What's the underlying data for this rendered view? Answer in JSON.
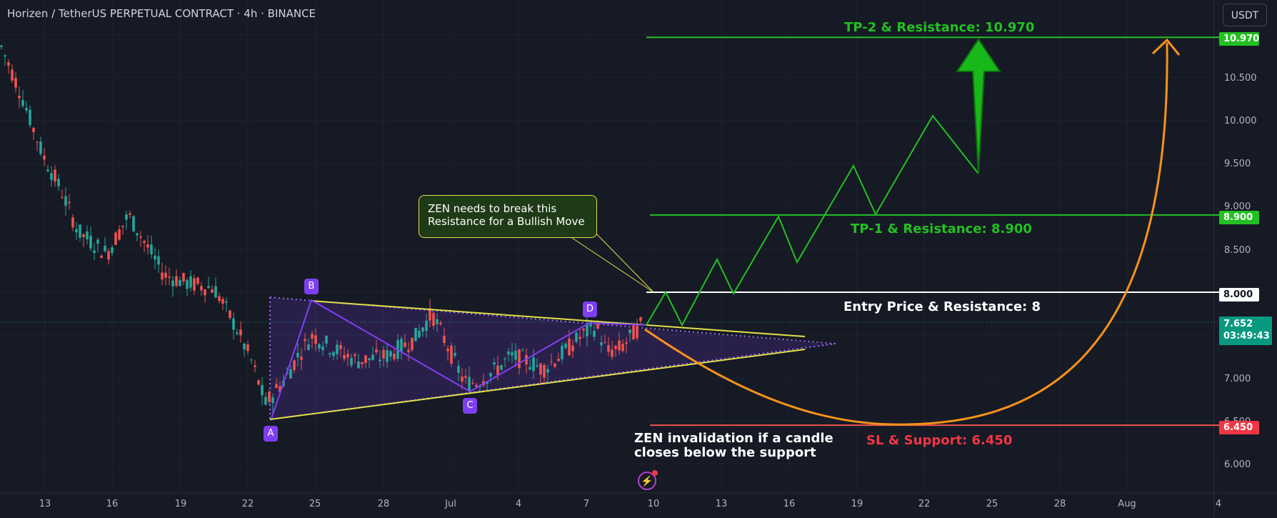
{
  "header": {
    "title": "Horizen / TetherUS PERPETUAL CONTRACT · 4h · BINANCE",
    "currency": "USDT"
  },
  "chart_data": {
    "type": "candlestick",
    "x_tick_labels": [
      "13",
      "16",
      "19",
      "22",
      "25",
      "28",
      "Jul",
      "4",
      "7",
      "10",
      "13",
      "16",
      "19",
      "22",
      "25",
      "28",
      "Aug",
      "4"
    ],
    "y_tick_labels": [
      "10.500",
      "10.000",
      "9.500",
      "9.000",
      "8.500",
      "8.000",
      "7.000",
      "6.500",
      "6.000"
    ],
    "ylim": [
      5.5,
      11.3
    ],
    "current_price": "7.652",
    "countdown": "03:49:43",
    "levels": [
      {
        "name": "TP-2",
        "price": 10.97,
        "price_label": "10.970",
        "annotation": "TP-2 & Resistance: 10.970",
        "color": "#22c022"
      },
      {
        "name": "TP-1",
        "price": 8.9,
        "price_label": "8.900",
        "annotation": "TP-1 & Resistance: 8.900",
        "color": "#22c022"
      },
      {
        "name": "Entry",
        "price": 8.0,
        "price_label": "8.000",
        "annotation": "Entry Price & Resistance: 8",
        "color": "#ffffff"
      },
      {
        "name": "SL",
        "price": 6.45,
        "price_label": "6.450",
        "annotation": "SL & Support: 6.450",
        "color": "#f23645"
      }
    ],
    "pattern_points": [
      {
        "label": "A",
        "date": "Jun 23",
        "price": 6.55
      },
      {
        "label": "B",
        "date": "Jun 25",
        "price": 7.95
      },
      {
        "label": "C",
        "date": "Jul 2",
        "price": 6.85
      },
      {
        "label": "D",
        "date": "Jul 7",
        "price": 7.68
      }
    ],
    "callout_text": "ZEN needs to break this Resistance for a Bullish Move",
    "invalidation_text": [
      "ZEN invalidation if a candle",
      "closes below the support"
    ],
    "colors": {
      "background": "#161a25",
      "up": "#26a69a",
      "down": "#ef5350",
      "target": "#22c022",
      "projection": "#f7931a",
      "pattern": "#7e3ff2",
      "triangle": "#e3df4a"
    }
  }
}
